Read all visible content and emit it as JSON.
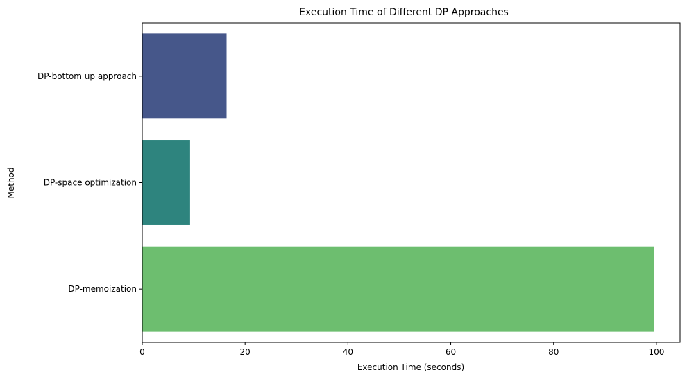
{
  "chart_data": {
    "type": "bar",
    "orientation": "horizontal",
    "title": "Execution Time of Different DP Approaches",
    "xlabel": "Execution Time (seconds)",
    "ylabel": "Method",
    "categories": [
      "DP-bottom up approach",
      "DP-space optimization",
      "DP-memoization"
    ],
    "values": [
      16.4,
      9.3,
      99.6
    ],
    "colors": [
      "#46578a",
      "#2e847e",
      "#6dbe6f"
    ],
    "xlim": [
      0,
      104.6
    ],
    "xticks": [
      0,
      20,
      40,
      60,
      80,
      100
    ],
    "xtick_labels": [
      "0",
      "20",
      "40",
      "60",
      "80",
      "100"
    ],
    "grid": false,
    "legend": "none"
  }
}
